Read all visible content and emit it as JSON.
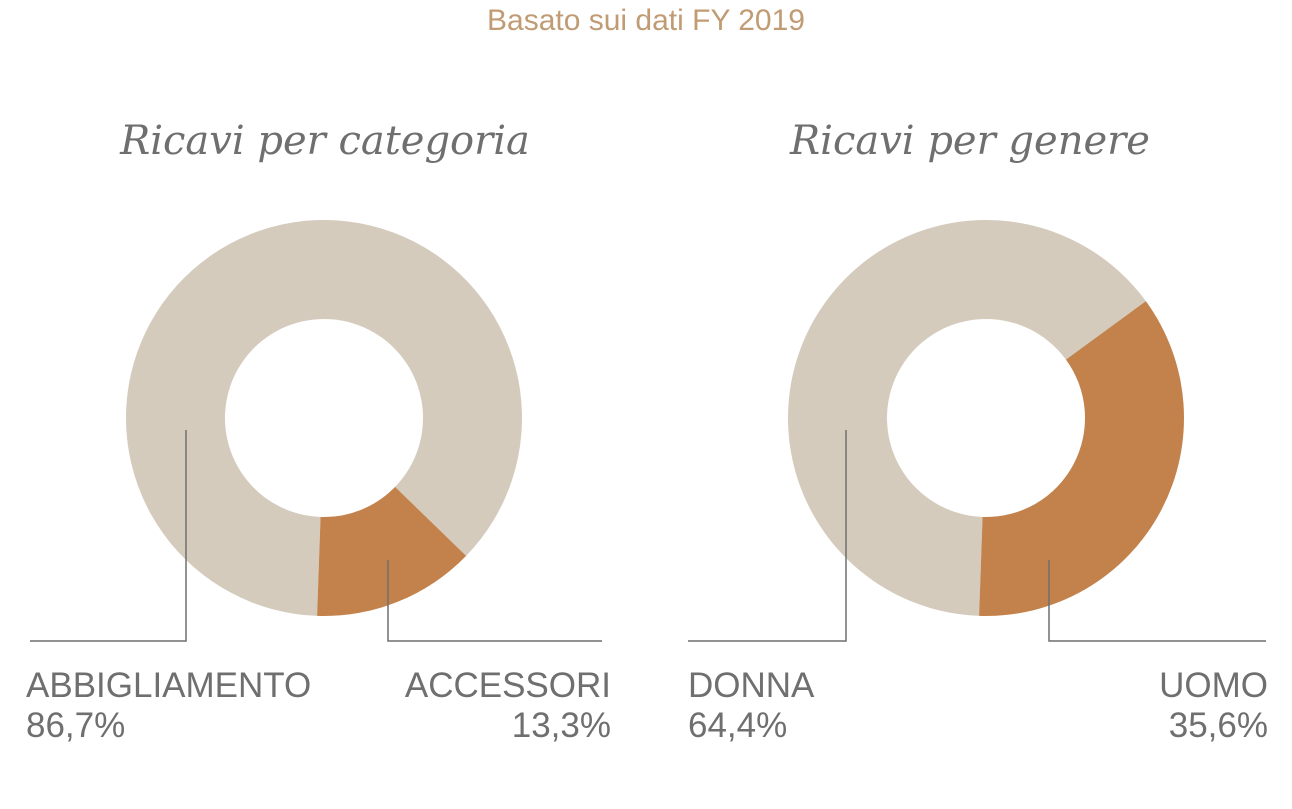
{
  "header": {
    "subtitle": "Basato sui dati FY 2019"
  },
  "colors": {
    "major_slice": "#d4cbbd",
    "minor_slice": "#c3824b",
    "leader_line": "#6f6f6f",
    "subtitle": "#c09b74",
    "text": "#6f6f6f"
  },
  "chart_data": [
    {
      "type": "pie",
      "title": "Ricavi per categoria",
      "categories": [
        "ABBIGLIAMENTO",
        "ACCESSORI"
      ],
      "values": [
        86.7,
        13.3
      ],
      "value_labels": [
        "86,7%",
        "13,3%"
      ]
    },
    {
      "type": "pie",
      "title": "Ricavi per genere",
      "categories": [
        "DONNA",
        "UOMO"
      ],
      "values": [
        64.4,
        35.6
      ],
      "value_labels": [
        "64,4%",
        "35,6%"
      ]
    }
  ]
}
